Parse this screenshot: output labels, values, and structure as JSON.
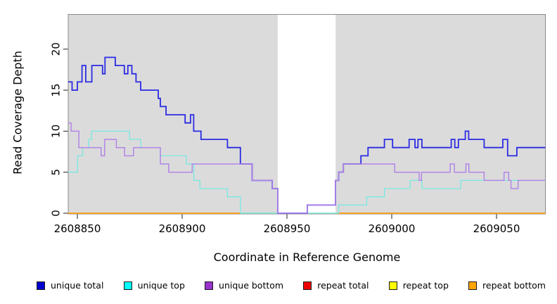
{
  "chart_data": {
    "type": "line",
    "step": true,
    "title": "",
    "xlabel": "Coordinate in Reference Genome",
    "ylabel": "Read Coverage Depth",
    "x_range": [
      2608845.6,
      2609073.3
    ],
    "y_range": [
      0,
      24.3
    ],
    "x_ticks": [
      2608850,
      2608900,
      2608950,
      2609000,
      2609050
    ],
    "y_ticks": [
      0,
      5,
      10,
      15,
      20
    ],
    "grid": false,
    "legend_position": "bottom",
    "panel_background": "#DBDBDB",
    "panel_border_color": "#8A8A8A",
    "masked_region": {
      "x_start": 2608945.6,
      "x_end": 2608973.2,
      "color": "#FFFFFF"
    },
    "zero_line_overlap_segment": {
      "x_start": 2608927.8,
      "x_end": 2608974.0,
      "depth": 0,
      "color": "#8CD98C"
    },
    "series": [
      {
        "name": "unique total",
        "line_color": "#2B2BE3",
        "legend_color": "#0000CD",
        "steps": [
          [
            2608845.6,
            16
          ],
          [
            2608847.5,
            15
          ],
          [
            2608850,
            16
          ],
          [
            2608852.2,
            18
          ],
          [
            2608854,
            16
          ],
          [
            2608856.9,
            18
          ],
          [
            2608862,
            17
          ],
          [
            2608863.2,
            19
          ],
          [
            2608868.1,
            18
          ],
          [
            2608872.4,
            17
          ],
          [
            2608874.1,
            18
          ],
          [
            2608876,
            17
          ],
          [
            2608878,
            16
          ],
          [
            2608880.2,
            15
          ],
          [
            2608888.6,
            14
          ],
          [
            2608889.6,
            13
          ],
          [
            2608892.3,
            12
          ],
          [
            2608901.4,
            11
          ],
          [
            2608904,
            12
          ],
          [
            2608905.5,
            10
          ],
          [
            2608909,
            9
          ],
          [
            2608921.6,
            8
          ],
          [
            2608927.8,
            6
          ],
          [
            2608933.4,
            4
          ],
          [
            2608943,
            3
          ],
          [
            2608945.6,
            0
          ],
          [
            2608959.7,
            1
          ],
          [
            2608973.2,
            4
          ],
          [
            2608974.7,
            5
          ],
          [
            2608976.9,
            6
          ],
          [
            2608985.3,
            7
          ],
          [
            2608988.7,
            8
          ],
          [
            2608996.5,
            9
          ],
          [
            2609000.4,
            8
          ],
          [
            2609008.3,
            9
          ],
          [
            2609011.1,
            8
          ],
          [
            2609012.5,
            9
          ],
          [
            2609014.4,
            8
          ],
          [
            2609028.4,
            9
          ],
          [
            2609030.1,
            8
          ],
          [
            2609031.8,
            9
          ],
          [
            2609035.1,
            10
          ],
          [
            2609036.7,
            9
          ],
          [
            2609044.1,
            8
          ],
          [
            2609053,
            9
          ],
          [
            2609055.3,
            7
          ],
          [
            2609059.7,
            8
          ]
        ]
      },
      {
        "name": "unique top",
        "line_color": "#79E9E3",
        "legend_color": "#00FFFF",
        "steps": [
          [
            2608845.6,
            5
          ],
          [
            2608850.1,
            7
          ],
          [
            2608852.5,
            8
          ],
          [
            2608855.4,
            9
          ],
          [
            2608856.8,
            10
          ],
          [
            2608874.9,
            9
          ],
          [
            2608880.2,
            8
          ],
          [
            2608889.6,
            7
          ],
          [
            2608902,
            6
          ],
          [
            2608905.6,
            4
          ],
          [
            2608908.5,
            3
          ],
          [
            2608921.6,
            2
          ],
          [
            2608927.8,
            0
          ],
          [
            2608974.7,
            1
          ],
          [
            2608988.1,
            2
          ],
          [
            2608996.5,
            3
          ],
          [
            2609008.8,
            4
          ],
          [
            2609014.4,
            3
          ],
          [
            2609032.9,
            4
          ]
        ]
      },
      {
        "name": "unique bottom",
        "line_color": "#B286E6",
        "legend_color": "#9932CC",
        "steps": [
          [
            2608845.6,
            11
          ],
          [
            2608847,
            10
          ],
          [
            2608850.7,
            8
          ],
          [
            2608861.3,
            7
          ],
          [
            2608863,
            9
          ],
          [
            2608868.6,
            8
          ],
          [
            2608872.5,
            7
          ],
          [
            2608876.8,
            8
          ],
          [
            2608889.6,
            6
          ],
          [
            2608893.6,
            5
          ],
          [
            2608904.8,
            6
          ],
          [
            2608933.4,
            4
          ],
          [
            2608943,
            3
          ],
          [
            2608945.6,
            0
          ],
          [
            2608959.7,
            1
          ],
          [
            2608973.2,
            4
          ],
          [
            2608974.7,
            5
          ],
          [
            2608976.9,
            6
          ],
          [
            2609001.4,
            5
          ],
          [
            2609013.1,
            4
          ],
          [
            2609014.2,
            5
          ],
          [
            2609027.9,
            6
          ],
          [
            2609029.9,
            5
          ],
          [
            2609035.4,
            6
          ],
          [
            2609036.8,
            5
          ],
          [
            2609044.1,
            4
          ],
          [
            2609053.6,
            5
          ],
          [
            2609055.8,
            4
          ],
          [
            2609056.9,
            3
          ],
          [
            2609060.3,
            4
          ]
        ]
      },
      {
        "name": "repeat total",
        "line_color": "#DD0000",
        "legend_color": "#EE0000",
        "depth": 0,
        "segments": [
          [
            2608845.6,
            2608927.8
          ],
          [
            2608974.0,
            2609073.3
          ]
        ]
      },
      {
        "name": "repeat top",
        "line_color": "#EEEE00",
        "legend_color": "#FFFF00",
        "depth": 0,
        "segments": [
          [
            2608845.6,
            2608927.8
          ],
          [
            2608974.0,
            2609073.3
          ]
        ]
      },
      {
        "name": "repeat bottom",
        "line_color": "#FFA020",
        "legend_color": "#FFA500",
        "depth": 0,
        "segments": [
          [
            2608845.6,
            2608927.8
          ],
          [
            2608974.0,
            2609073.3
          ]
        ]
      }
    ]
  },
  "axis": {
    "xlabel": "Coordinate in Reference Genome",
    "ylabel": "Read Coverage Depth"
  },
  "legend": {
    "items": [
      {
        "label": "unique total",
        "color": "#0000CD"
      },
      {
        "label": "unique top",
        "color": "#00FFFF"
      },
      {
        "label": "unique bottom",
        "color": "#9932CC"
      },
      {
        "label": "repeat total",
        "color": "#EE0000"
      },
      {
        "label": "repeat top",
        "color": "#FFFF00"
      },
      {
        "label": "repeat bottom",
        "color": "#FFA500"
      }
    ]
  }
}
